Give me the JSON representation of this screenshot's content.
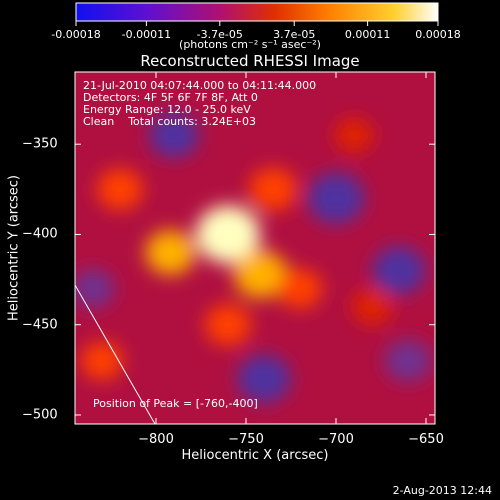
{
  "colorbar": {
    "ticks": [
      "-0.00018",
      "-0.00011",
      "-3.7e-05",
      "3.7e-05",
      "0.00011",
      "0.00018"
    ],
    "units": "(photons cm⁻² s⁻¹ asec⁻²)",
    "colors": [
      "#1010f0",
      "#6010d0",
      "#b01070",
      "#e03000",
      "#ff8000",
      "#ffd030",
      "#ffffff"
    ]
  },
  "chart_data": {
    "type": "heatmap",
    "title": "Reconstructed RHESSI Image",
    "xlabel": "Heliocentric X (arcsec)",
    "ylabel": "Heliocentric Y (arcsec)",
    "xlim": [
      -845,
      -645
    ],
    "ylim": [
      -505,
      -310
    ],
    "xticks": [
      "-800",
      "-750",
      "-700",
      "-650"
    ],
    "yticks": [
      "-350",
      "-400",
      "-450",
      "-500"
    ],
    "colorbar_range": [
      -0.00018,
      0.00018
    ],
    "peak": [
      -760,
      -400
    ],
    "annotations": [
      "21-Jul-2010 04:07:44.000 to 04:11:44.000",
      "Detectors: 4F 5F 6F 7F 8F, Att 0",
      "Energy Range: 12.0 - 25.0 keV",
      "Clean    Total counts: 3.24E+03"
    ],
    "peak_label": "Position of Peak = [-760,-400]",
    "blobs": [
      {
        "x": -760,
        "y": -400,
        "level": 1.0
      },
      {
        "x": -742,
        "y": -422,
        "level": 0.7
      },
      {
        "x": -792,
        "y": -410,
        "level": 0.6
      },
      {
        "x": -820,
        "y": -375,
        "level": 0.5
      },
      {
        "x": -735,
        "y": -375,
        "level": 0.55
      },
      {
        "x": -760,
        "y": -450,
        "level": 0.5
      },
      {
        "x": -720,
        "y": -430,
        "level": 0.45
      },
      {
        "x": -830,
        "y": -470,
        "level": 0.4
      },
      {
        "x": -690,
        "y": -345,
        "level": 0.3
      },
      {
        "x": -680,
        "y": -440,
        "level": 0.35
      },
      {
        "x": -700,
        "y": -380,
        "level": -0.8
      },
      {
        "x": -665,
        "y": -420,
        "level": -0.7
      },
      {
        "x": -790,
        "y": -345,
        "level": -0.6
      },
      {
        "x": -740,
        "y": -480,
        "level": -0.7
      },
      {
        "x": -660,
        "y": -470,
        "level": -0.5
      },
      {
        "x": -835,
        "y": -430,
        "level": -0.4
      }
    ]
  },
  "footer": "2-Aug-2013 12:44"
}
